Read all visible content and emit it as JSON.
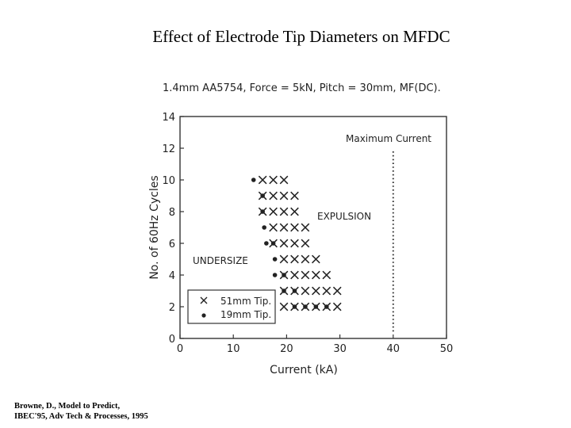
{
  "slide_title": "Effect of Electrode Tip Diameters on MFDC",
  "citation": [
    "Browne, D., Model to Predict,",
    "IBEC'95, Adv Tech & Processes, 1995"
  ],
  "chart_data": {
    "type": "scatter",
    "title": "1.4mm AA5754, Force = 5kN, Pitch = 30mm, MF(DC).",
    "xlabel": "Current (kA)",
    "ylabel": "No. of 60Hz Cycles",
    "xlim": [
      0,
      50
    ],
    "ylim": [
      0,
      14
    ],
    "xticks": [
      "0",
      "10",
      "20",
      "30",
      "40",
      "50"
    ],
    "yticks": [
      "0",
      "2",
      "4",
      "6",
      "8",
      "10",
      "12",
      "14"
    ],
    "grid": false,
    "legend": {
      "placement": "bottom-left",
      "entries": [
        "51mm Tip.",
        "19mm Tip."
      ]
    },
    "annotations": [
      "Maximum Current",
      "EXPULSION",
      "UNDERSIZE"
    ],
    "max_current_line": {
      "x": 40,
      "style": "dotted"
    },
    "series": [
      {
        "name": "51mm Tip.",
        "marker": "x",
        "points": [
          [
            15.5,
            10
          ],
          [
            17.5,
            10
          ],
          [
            19.5,
            10
          ],
          [
            15.5,
            9
          ],
          [
            17.5,
            9
          ],
          [
            19.5,
            9
          ],
          [
            21.5,
            9
          ],
          [
            15.5,
            8
          ],
          [
            17.5,
            8
          ],
          [
            19.5,
            8
          ],
          [
            21.5,
            8
          ],
          [
            17.5,
            7
          ],
          [
            19.5,
            7
          ],
          [
            21.5,
            7
          ],
          [
            23.5,
            7
          ],
          [
            17.5,
            6
          ],
          [
            19.5,
            6
          ],
          [
            21.5,
            6
          ],
          [
            23.5,
            6
          ],
          [
            19.5,
            5
          ],
          [
            21.5,
            5
          ],
          [
            23.5,
            5
          ],
          [
            25.5,
            5
          ],
          [
            19.5,
            4
          ],
          [
            21.5,
            4
          ],
          [
            23.5,
            4
          ],
          [
            25.5,
            4
          ],
          [
            27.5,
            4
          ],
          [
            19.5,
            3
          ],
          [
            21.5,
            3
          ],
          [
            23.5,
            3
          ],
          [
            25.5,
            3
          ],
          [
            27.5,
            3
          ],
          [
            29.5,
            3
          ],
          [
            19.5,
            2
          ],
          [
            21.5,
            2
          ],
          [
            23.5,
            2
          ],
          [
            25.5,
            2
          ],
          [
            27.5,
            2
          ],
          [
            29.5,
            2
          ]
        ]
      },
      {
        "name": "19mm Tip.",
        "marker": "dot",
        "points": [
          [
            13.8,
            10
          ],
          [
            15.5,
            9
          ],
          [
            15.5,
            8
          ],
          [
            15.8,
            7
          ],
          [
            16.2,
            6
          ],
          [
            17.5,
            6
          ],
          [
            17.8,
            5
          ],
          [
            17.8,
            4
          ],
          [
            19.5,
            4
          ],
          [
            19.5,
            3
          ],
          [
            21.5,
            3
          ],
          [
            21.5,
            2
          ],
          [
            23.5,
            2
          ],
          [
            25.5,
            2
          ],
          [
            27.5,
            2
          ]
        ]
      }
    ]
  }
}
